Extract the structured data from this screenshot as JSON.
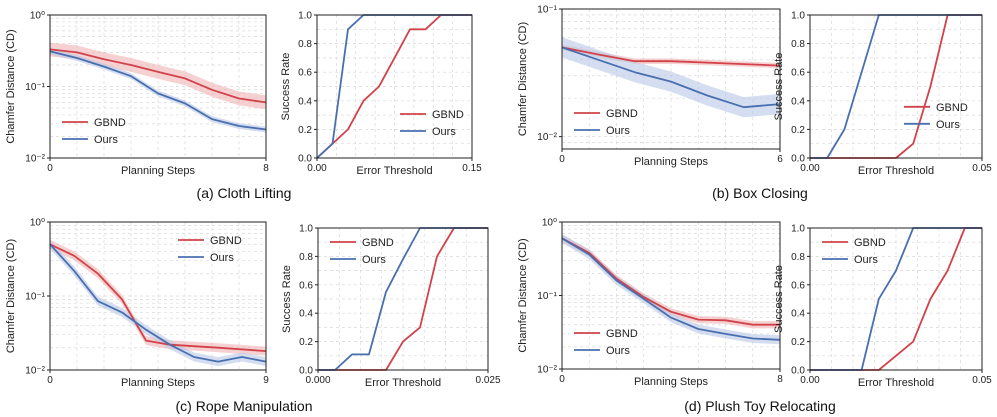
{
  "colors": {
    "gbnd": "#d1424a",
    "ours": "#4a6fb0",
    "gbnd_band": "#f0b2b2",
    "ours_band": "#b7c8e6",
    "grid": "#d9d9d9",
    "axis": "#222222"
  },
  "captions": [
    "(a) Cloth Lifting",
    "(b) Box Closing",
    "(c) Rope Manipulation",
    "(d) Plush Toy Relocating"
  ],
  "chart_data": [
    {
      "id": "cloth-cd",
      "type": "line",
      "yscale": "log",
      "xlabel": "Planning Steps",
      "ylabel": "Chamfer Distance (CD)",
      "xlim": [
        0,
        8
      ],
      "ylim": [
        0.01,
        1
      ],
      "xticks": [
        0,
        8
      ],
      "xtick_labels": [
        "0",
        "8"
      ],
      "yticks": [
        0.01,
        0.1,
        1
      ],
      "ytick_labels": [
        "10⁻²",
        "10⁻¹",
        "10⁰"
      ],
      "legend": "lower-left",
      "series": [
        {
          "name": "GBND",
          "color_key": "gbnd",
          "x": [
            0,
            1,
            2,
            3,
            4,
            5,
            6,
            7,
            8
          ],
          "y": [
            0.33,
            0.3,
            0.24,
            0.2,
            0.16,
            0.13,
            0.09,
            0.068,
            0.06
          ],
          "band": 0.25
        },
        {
          "name": "Ours",
          "color_key": "ours",
          "x": [
            0,
            1,
            2,
            3,
            4,
            5,
            6,
            7,
            8
          ],
          "y": [
            0.31,
            0.25,
            0.19,
            0.14,
            0.08,
            0.058,
            0.035,
            0.028,
            0.025
          ],
          "band": 0.1
        }
      ]
    },
    {
      "id": "cloth-sr",
      "type": "line",
      "yscale": "linear",
      "xlabel": "Error Threshold",
      "ylabel": "Success Rate",
      "xlim": [
        0,
        0.15
      ],
      "ylim": [
        0,
        1
      ],
      "xticks": [
        0,
        0.15
      ],
      "xtick_labels": [
        "0.00",
        "0.15"
      ],
      "yticks": [
        0,
        0.2,
        0.4,
        0.6,
        0.8,
        1.0
      ],
      "ytick_labels": [
        "0.0",
        "0.2",
        "0.4",
        "0.6",
        "0.8",
        "1.0"
      ],
      "legend": "lower-right",
      "series": [
        {
          "name": "GBND",
          "color_key": "gbnd",
          "x": [
            0,
            0.015,
            0.03,
            0.045,
            0.06,
            0.075,
            0.09,
            0.105,
            0.12,
            0.135,
            0.15
          ],
          "y": [
            0,
            0.1,
            0.2,
            0.4,
            0.5,
            0.7,
            0.9,
            0.9,
            1,
            1,
            1
          ]
        },
        {
          "name": "Ours",
          "color_key": "ours",
          "x": [
            0,
            0.015,
            0.03,
            0.045,
            0.06,
            0.075,
            0.09,
            0.105,
            0.12,
            0.135,
            0.15
          ],
          "y": [
            0,
            0.1,
            0.9,
            1,
            1,
            1,
            1,
            1,
            1,
            1,
            1
          ]
        }
      ]
    },
    {
      "id": "box-cd",
      "type": "line",
      "yscale": "log",
      "xlabel": "Planning Steps",
      "ylabel": "Chamfer Distance (CD)",
      "xlim": [
        0,
        6
      ],
      "ylim": [
        0.008,
        0.1
      ],
      "xticks": [
        0,
        6
      ],
      "xtick_labels": [
        "0",
        "6"
      ],
      "yticks": [
        0.01,
        0.1
      ],
      "ytick_labels": [
        "10⁻²",
        "10⁻¹"
      ],
      "legend": "lower-left",
      "series": [
        {
          "name": "GBND",
          "color_key": "gbnd",
          "x": [
            0,
            1,
            2,
            3,
            4,
            5,
            6
          ],
          "y": [
            0.05,
            0.044,
            0.039,
            0.039,
            0.038,
            0.037,
            0.036
          ],
          "band": 0.05
        },
        {
          "name": "Ours",
          "color_key": "ours",
          "x": [
            0,
            1,
            2,
            3,
            4,
            5,
            6
          ],
          "y": [
            0.05,
            0.04,
            0.032,
            0.027,
            0.021,
            0.017,
            0.018
          ],
          "band": 0.2
        }
      ]
    },
    {
      "id": "box-sr",
      "type": "line",
      "yscale": "linear",
      "xlabel": "Error Threshold",
      "ylabel": "Success Rate",
      "xlim": [
        0,
        0.05
      ],
      "ylim": [
        0,
        1
      ],
      "xticks": [
        0,
        0.05
      ],
      "xtick_labels": [
        "0.00",
        "0.05"
      ],
      "yticks": [
        0,
        0.2,
        0.4,
        0.6,
        0.8,
        1.0
      ],
      "ytick_labels": [
        "0.0",
        "0.2",
        "0.4",
        "0.6",
        "0.8",
        "1.0"
      ],
      "legend": "center-right",
      "series": [
        {
          "name": "GBND",
          "color_key": "gbnd",
          "x": [
            0,
            0.005,
            0.01,
            0.015,
            0.02,
            0.025,
            0.03,
            0.035,
            0.04,
            0.045,
            0.05
          ],
          "y": [
            0,
            0,
            0,
            0,
            0,
            0,
            0.1,
            0.5,
            1,
            1,
            1
          ]
        },
        {
          "name": "Ours",
          "color_key": "ours",
          "x": [
            0,
            0.005,
            0.01,
            0.015,
            0.02,
            0.025,
            0.03,
            0.035,
            0.04,
            0.045,
            0.05
          ],
          "y": [
            0,
            0,
            0.2,
            0.6,
            1,
            1,
            1,
            1,
            1,
            1,
            1
          ]
        }
      ]
    },
    {
      "id": "rope-cd",
      "type": "line",
      "yscale": "log",
      "xlabel": "Planning Steps",
      "ylabel": "Chamfer Distance (CD)",
      "xlim": [
        0,
        9
      ],
      "ylim": [
        0.01,
        1
      ],
      "xticks": [
        0,
        9
      ],
      "xtick_labels": [
        "0",
        "9"
      ],
      "yticks": [
        0.01,
        0.1,
        1
      ],
      "ytick_labels": [
        "10⁻²",
        "10⁻¹",
        "10⁰"
      ],
      "legend": "upper-right",
      "series": [
        {
          "name": "GBND",
          "color_key": "gbnd",
          "x": [
            0,
            1,
            2,
            3,
            4,
            5,
            6,
            7,
            8,
            9
          ],
          "y": [
            0.5,
            0.35,
            0.2,
            0.09,
            0.025,
            0.022,
            0.021,
            0.02,
            0.019,
            0.018
          ],
          "band": 0.15
        },
        {
          "name": "Ours",
          "color_key": "ours",
          "x": [
            0,
            1,
            2,
            3,
            4,
            5,
            6,
            7,
            8,
            9
          ],
          "y": [
            0.5,
            0.22,
            0.085,
            0.06,
            0.035,
            0.022,
            0.015,
            0.013,
            0.015,
            0.013
          ],
          "band": 0.15
        }
      ]
    },
    {
      "id": "rope-sr",
      "type": "line",
      "yscale": "linear",
      "xlabel": "Error Threshold",
      "ylabel": "Success Rate",
      "xlim": [
        0,
        0.025
      ],
      "ylim": [
        0,
        1
      ],
      "xticks": [
        0,
        0.025
      ],
      "xtick_labels": [
        "0.000",
        "0.025"
      ],
      "yticks": [
        0,
        0.2,
        0.4,
        0.6,
        0.8,
        1.0
      ],
      "ytick_labels": [
        "0.0",
        "0.2",
        "0.4",
        "0.6",
        "0.8",
        "1.0"
      ],
      "legend": "upper-left",
      "series": [
        {
          "name": "GBND",
          "color_key": "gbnd",
          "x": [
            0,
            0.0025,
            0.005,
            0.0075,
            0.01,
            0.0125,
            0.015,
            0.0175,
            0.02,
            0.0225,
            0.025
          ],
          "y": [
            0,
            0,
            0,
            0,
            0,
            0.2,
            0.3,
            0.8,
            1,
            1,
            1
          ]
        },
        {
          "name": "Ours",
          "color_key": "ours",
          "x": [
            0,
            0.0025,
            0.005,
            0.0075,
            0.01,
            0.0125,
            0.015,
            0.0175,
            0.02,
            0.0225,
            0.025
          ],
          "y": [
            0,
            0,
            0.11,
            0.11,
            0.55,
            0.78,
            1,
            1,
            1,
            1,
            1
          ]
        }
      ]
    },
    {
      "id": "plush-cd",
      "type": "line",
      "yscale": "log",
      "xlabel": "Planning Steps",
      "ylabel": "Chamfer Distance (CD)",
      "xlim": [
        0,
        8
      ],
      "ylim": [
        0.01,
        1
      ],
      "xticks": [
        0,
        8
      ],
      "xtick_labels": [
        "0",
        "8"
      ],
      "yticks": [
        0.01,
        0.1,
        1
      ],
      "ytick_labels": [
        "10⁻²",
        "10⁻¹",
        "10⁰"
      ],
      "legend": "lower-left",
      "series": [
        {
          "name": "GBND",
          "color_key": "gbnd",
          "x": [
            0,
            1,
            2,
            3,
            4,
            5,
            6,
            7,
            8
          ],
          "y": [
            0.6,
            0.38,
            0.17,
            0.095,
            0.06,
            0.047,
            0.046,
            0.04,
            0.04
          ],
          "band": 0.12
        },
        {
          "name": "Ours",
          "color_key": "ours",
          "x": [
            0,
            1,
            2,
            3,
            4,
            5,
            6,
            7,
            8
          ],
          "y": [
            0.6,
            0.36,
            0.16,
            0.09,
            0.05,
            0.035,
            0.03,
            0.026,
            0.025
          ],
          "band": 0.15
        }
      ]
    },
    {
      "id": "plush-sr",
      "type": "line",
      "yscale": "linear",
      "xlabel": "Error Threshold",
      "ylabel": "Success Rate",
      "xlim": [
        0,
        0.05
      ],
      "ylim": [
        0,
        1
      ],
      "xticks": [
        0,
        0.05
      ],
      "xtick_labels": [
        "0.00",
        "0.05"
      ],
      "yticks": [
        0,
        0.2,
        0.4,
        0.6,
        0.8,
        1.0
      ],
      "ytick_labels": [
        "0.0",
        "0.2",
        "0.4",
        "0.6",
        "0.8",
        "1.0"
      ],
      "legend": "upper-left",
      "series": [
        {
          "name": "GBND",
          "color_key": "gbnd",
          "x": [
            0,
            0.005,
            0.01,
            0.015,
            0.02,
            0.025,
            0.03,
            0.035,
            0.04,
            0.045,
            0.05
          ],
          "y": [
            0,
            0,
            0,
            0,
            0,
            0.1,
            0.2,
            0.5,
            0.7,
            1,
            1
          ]
        },
        {
          "name": "Ours",
          "color_key": "ours",
          "x": [
            0,
            0.005,
            0.01,
            0.015,
            0.02,
            0.025,
            0.03,
            0.035,
            0.04,
            0.045,
            0.05
          ],
          "y": [
            0,
            0,
            0,
            0,
            0.5,
            0.7,
            1,
            1,
            1,
            1,
            1
          ]
        }
      ]
    }
  ]
}
